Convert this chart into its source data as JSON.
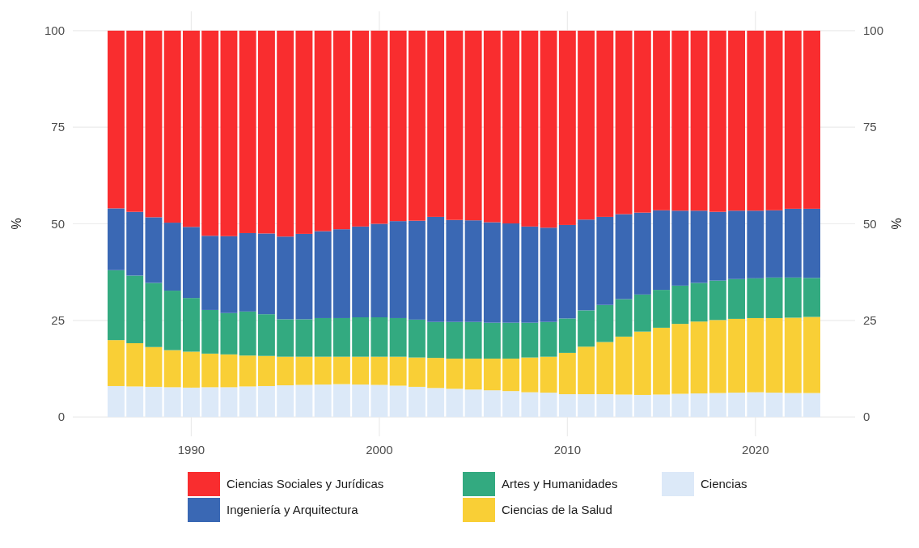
{
  "chart_data": {
    "type": "bar",
    "stacked": true,
    "ylabel": "%",
    "y2label": "%",
    "x": [
      1986,
      1987,
      1988,
      1989,
      1990,
      1991,
      1992,
      1993,
      1994,
      1995,
      1996,
      1997,
      1998,
      1999,
      2000,
      2001,
      2002,
      2003,
      2004,
      2005,
      2006,
      2007,
      2008,
      2009,
      2010,
      2011,
      2012,
      2013,
      2014,
      2015,
      2016,
      2017,
      2018,
      2019,
      2020,
      2021,
      2022,
      2023
    ],
    "xlim": [
      1983.7,
      2025.3
    ],
    "xticks": [
      1990,
      2000,
      2010,
      2020
    ],
    "ylim": [
      -5,
      105
    ],
    "yticks": [
      0,
      25,
      50,
      75,
      100
    ],
    "y2lim": [
      -5,
      105
    ],
    "y2ticks": [
      0,
      25,
      50,
      75,
      100
    ],
    "grid": true,
    "legend": "bottom",
    "series": [
      {
        "name": "Ciencias",
        "color": "#dce9f8",
        "values": [
          8.0,
          7.9,
          7.8,
          7.7,
          7.6,
          7.7,
          7.7,
          7.9,
          8.0,
          8.2,
          8.3,
          8.4,
          8.5,
          8.4,
          8.3,
          8.1,
          7.8,
          7.5,
          7.3,
          7.1,
          6.9,
          6.7,
          6.4,
          6.3,
          5.9,
          5.9,
          5.9,
          5.8,
          5.7,
          5.8,
          6.0,
          6.1,
          6.2,
          6.3,
          6.4,
          6.3,
          6.2,
          6.2
        ]
      },
      {
        "name": "Ciencias de la Salud",
        "color": "#f9cf36",
        "values": [
          11.9,
          11.2,
          10.3,
          9.6,
          9.3,
          8.7,
          8.5,
          8.0,
          7.8,
          7.4,
          7.3,
          7.2,
          7.1,
          7.2,
          7.3,
          7.5,
          7.6,
          7.8,
          7.8,
          8.0,
          8.2,
          8.4,
          9.0,
          9.3,
          10.7,
          12.3,
          13.5,
          15.0,
          16.4,
          17.3,
          18.1,
          18.6,
          18.9,
          19.1,
          19.2,
          19.3,
          19.5,
          19.7
        ]
      },
      {
        "name": "Artes y Humanidades",
        "color": "#33aa80",
        "values": [
          18.1,
          17.5,
          16.6,
          15.4,
          13.9,
          11.3,
          10.7,
          11.4,
          10.8,
          9.7,
          9.7,
          10.0,
          10.0,
          10.2,
          10.2,
          10.0,
          9.8,
          9.3,
          9.5,
          9.5,
          9.3,
          9.3,
          9.0,
          9.0,
          8.9,
          9.4,
          9.6,
          9.7,
          9.6,
          9.8,
          9.9,
          10.0,
          10.2,
          10.3,
          10.3,
          10.5,
          10.4,
          10.1
        ]
      },
      {
        "name": "Ingeniería y Arquitectura",
        "color": "#3a68b4",
        "values": [
          16.0,
          16.5,
          17.0,
          17.6,
          18.4,
          19.2,
          19.9,
          20.3,
          20.9,
          21.4,
          22.1,
          22.5,
          23.0,
          23.5,
          24.2,
          25.1,
          25.6,
          27.2,
          26.4,
          26.3,
          26.0,
          25.7,
          24.9,
          24.4,
          24.2,
          23.5,
          22.8,
          22.0,
          21.2,
          20.6,
          19.4,
          18.7,
          17.8,
          17.7,
          17.5,
          17.4,
          17.8,
          17.9
        ]
      },
      {
        "name": "Ciencias Sociales y Jurídicas",
        "color": "#f92d2f",
        "values": [
          46.0,
          46.9,
          48.3,
          49.7,
          50.8,
          53.1,
          53.2,
          52.4,
          52.5,
          53.3,
          52.6,
          51.9,
          51.4,
          50.7,
          50.0,
          49.3,
          49.2,
          48.2,
          49.0,
          49.1,
          49.6,
          49.9,
          50.7,
          51.0,
          50.3,
          48.9,
          48.2,
          47.5,
          47.1,
          46.5,
          46.6,
          46.6,
          46.9,
          46.6,
          46.6,
          46.5,
          46.1,
          46.1
        ]
      }
    ]
  }
}
